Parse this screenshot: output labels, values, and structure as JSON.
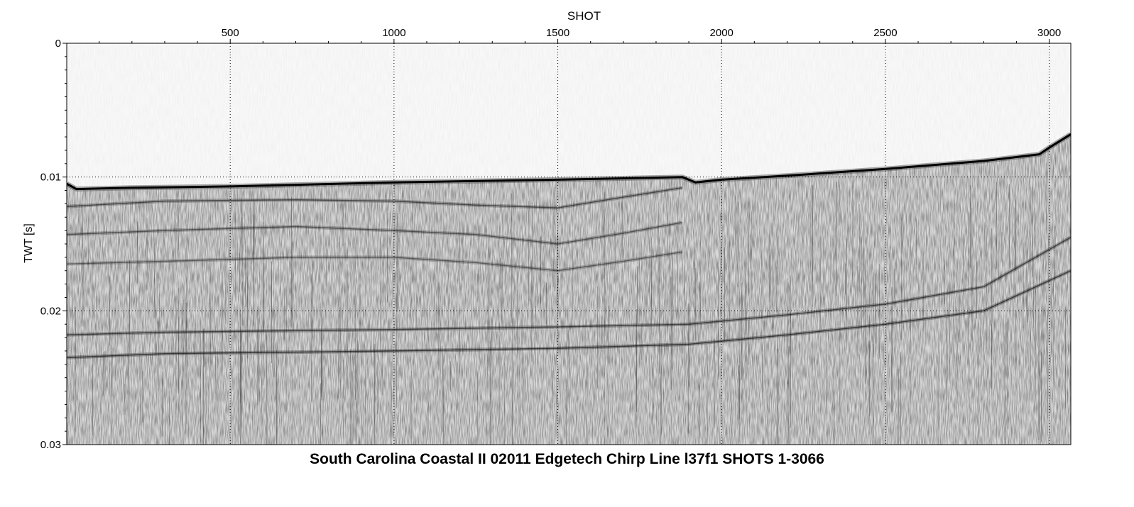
{
  "chart_data": {
    "type": "heatmap",
    "title": "South Carolina Coastal II 02011 Edgetech Chirp Line l37f1 SHOTS 1-3066",
    "xlabel": "SHOT",
    "ylabel": "TWT [s]",
    "x_axis_position": "top",
    "xlim": [
      1,
      3066
    ],
    "ylim": [
      0,
      0.03
    ],
    "y_inverted": true,
    "x_ticks": [
      500,
      1000,
      1500,
      2000,
      2500,
      3000
    ],
    "x_tick_labels": [
      "500",
      "1000",
      "1500",
      "2000",
      "2500",
      "3000"
    ],
    "y_ticks": [
      0,
      0.01,
      0.02,
      0.03
    ],
    "y_tick_labels": [
      "0",
      "0.01",
      "0.02",
      "0.03"
    ],
    "grid": "dotted at major ticks",
    "colormap": "grayscale amplitude",
    "seafloor_reflector": {
      "shot": [
        1,
        30,
        200,
        500,
        1000,
        1500,
        1880,
        1920,
        2000,
        2200,
        2500,
        2800,
        2970,
        3000,
        3066
      ],
      "twt": [
        0.0105,
        0.0109,
        0.0108,
        0.0107,
        0.0104,
        0.0102,
        0.01,
        0.0104,
        0.0102,
        0.0099,
        0.0094,
        0.0088,
        0.0083,
        0.0078,
        0.0068
      ]
    },
    "subbottom_reflectors": [
      {
        "shot": [
          1,
          300,
          700,
          1000,
          1250,
          1500,
          1700,
          1880
        ],
        "twt": [
          0.0122,
          0.0118,
          0.0117,
          0.0118,
          0.0121,
          0.0123,
          0.0115,
          0.0108
        ]
      },
      {
        "shot": [
          1,
          300,
          700,
          1000,
          1250,
          1500,
          1700,
          1880
        ],
        "twt": [
          0.0143,
          0.014,
          0.0137,
          0.014,
          0.0143,
          0.015,
          0.0142,
          0.0134
        ]
      },
      {
        "shot": [
          1,
          300,
          700,
          1000,
          1250,
          1500,
          1700,
          1880
        ],
        "twt": [
          0.0165,
          0.0163,
          0.016,
          0.016,
          0.0164,
          0.017,
          0.0163,
          0.0156
        ]
      },
      {
        "shot": [
          1,
          300,
          1000,
          1500,
          1900,
          2200,
          2500,
          2800,
          3066
        ],
        "twt": [
          0.0218,
          0.0216,
          0.0214,
          0.0212,
          0.021,
          0.0203,
          0.0195,
          0.0182,
          0.0145
        ]
      },
      {
        "shot": [
          1,
          300,
          1000,
          1500,
          1900,
          2200,
          2500,
          2800,
          3066
        ],
        "twt": [
          0.0235,
          0.0232,
          0.023,
          0.0228,
          0.0225,
          0.0218,
          0.021,
          0.02,
          0.017
        ]
      }
    ]
  }
}
